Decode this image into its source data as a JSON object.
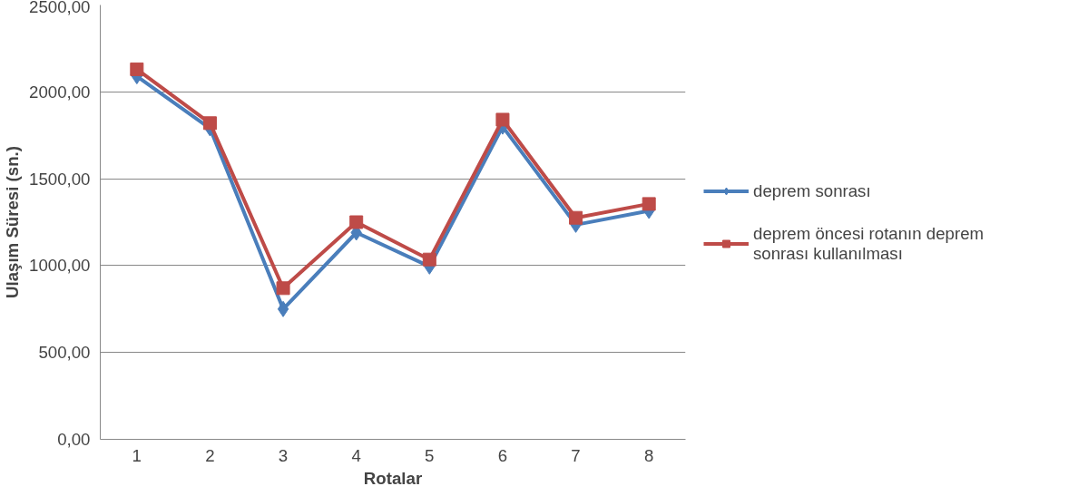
{
  "chart_data": {
    "type": "line",
    "xlabel": "Rotalar",
    "ylabel": "Ulaşım Süresi (sn.)",
    "categories": [
      "1",
      "2",
      "3",
      "4",
      "5",
      "6",
      "7",
      "8"
    ],
    "series": [
      {
        "name": "deprem sonrası",
        "color": "#4a7ebb",
        "marker": "diamond",
        "values": [
          2090,
          1790,
          750,
          1190,
          995,
          1800,
          1235,
          1315
        ]
      },
      {
        "name": "deprem öncesi rotanın deprem sonrası kullanılması",
        "color": "#be4b48",
        "marker": "square",
        "values": [
          2130,
          1820,
          870,
          1250,
          1035,
          1840,
          1275,
          1355
        ]
      }
    ],
    "ylim": [
      0,
      2500
    ],
    "yticks": [
      {
        "value": 0,
        "label": "0,00"
      },
      {
        "value": 500,
        "label": "500,00"
      },
      {
        "value": 1000,
        "label": "1000,00"
      },
      {
        "value": 1500,
        "label": "1500,00"
      },
      {
        "value": 2000,
        "label": "2000,00"
      },
      {
        "value": 2500,
        "label": "2500,00"
      }
    ],
    "grid": "y",
    "legend": "right",
    "line_style": "solid"
  }
}
